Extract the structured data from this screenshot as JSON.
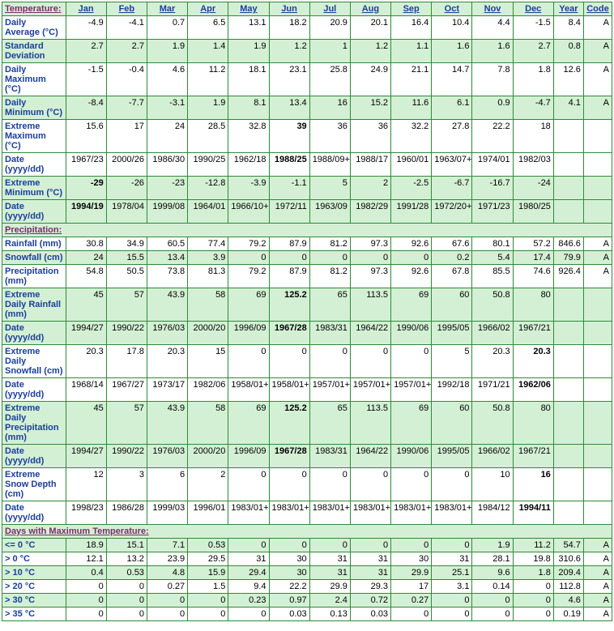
{
  "columns": [
    "Jan",
    "Feb",
    "Mar",
    "Apr",
    "May",
    "Jun",
    "Jul",
    "Aug",
    "Sep",
    "Oct",
    "Nov",
    "Dec",
    "Year",
    "Code"
  ],
  "sections": [
    {
      "title": "Temperature:",
      "titleFirstCell": true,
      "rows": [
        {
          "label": "Daily Average (°C)",
          "shaded": false,
          "cells": [
            "-4.9",
            "-4.1",
            "0.7",
            "6.5",
            "13.1",
            "18.2",
            "20.9",
            "20.1",
            "16.4",
            "10.4",
            "4.4",
            "-1.5",
            "8.4",
            "A"
          ]
        },
        {
          "label": "Standard Deviation",
          "shaded": true,
          "cells": [
            "2.7",
            "2.7",
            "1.9",
            "1.4",
            "1.9",
            "1.2",
            "1",
            "1.2",
            "1.1",
            "1.6",
            "1.6",
            "2.7",
            "0.8",
            "A"
          ]
        },
        {
          "label": "Daily Maximum (°C)",
          "shaded": false,
          "cells": [
            "-1.5",
            "-0.4",
            "4.6",
            "11.2",
            "18.1",
            "23.1",
            "25.8",
            "24.9",
            "21.1",
            "14.7",
            "7.8",
            "1.8",
            "12.6",
            "A"
          ]
        },
        {
          "label": "Daily Minimum (°C)",
          "shaded": true,
          "cells": [
            "-8.4",
            "-7.7",
            "-3.1",
            "1.9",
            "8.1",
            "13.4",
            "16",
            "15.2",
            "11.6",
            "6.1",
            "0.9",
            "-4.7",
            "4.1",
            "A"
          ]
        },
        {
          "label": "Extreme Maximum (°C)",
          "shaded": false,
          "cells": [
            "15.6",
            "17",
            "24",
            "28.5",
            "32.8",
            "39",
            "36",
            "36",
            "32.2",
            "27.8",
            "22.2",
            "18",
            "",
            ""
          ],
          "bold": [
            5
          ]
        },
        {
          "label": "Date (yyyy/dd)",
          "shaded": false,
          "cells": [
            "1967/23",
            "2000/26",
            "1986/30",
            "1990/25",
            "1962/18",
            "1988/25",
            "1988/09+",
            "1988/17",
            "1960/01",
            "1963/07+",
            "1974/01",
            "1982/03",
            "",
            ""
          ],
          "bold": [
            5
          ]
        },
        {
          "label": "Extreme Minimum (°C)",
          "shaded": true,
          "cells": [
            "-29",
            "-26",
            "-23",
            "-12.8",
            "-3.9",
            "-1.1",
            "5",
            "2",
            "-2.5",
            "-6.7",
            "-16.7",
            "-24",
            "",
            ""
          ],
          "bold": [
            0
          ]
        },
        {
          "label": "Date (yyyy/dd)",
          "shaded": true,
          "cells": [
            "1994/19",
            "1978/04",
            "1999/08",
            "1964/01",
            "1966/10+",
            "1972/11",
            "1963/09",
            "1982/29",
            "1991/28",
            "1972/20+",
            "1971/23",
            "1980/25",
            "",
            ""
          ],
          "bold": [
            0
          ]
        }
      ]
    },
    {
      "title": "Precipitation:",
      "rows": [
        {
          "label": "Rainfall (mm)",
          "shaded": false,
          "cells": [
            "30.8",
            "34.9",
            "60.5",
            "77.4",
            "79.2",
            "87.9",
            "81.2",
            "97.3",
            "92.6",
            "67.6",
            "80.1",
            "57.2",
            "846.6",
            "A"
          ]
        },
        {
          "label": "Snowfall (cm)",
          "shaded": true,
          "cells": [
            "24",
            "15.5",
            "13.4",
            "3.9",
            "0",
            "0",
            "0",
            "0",
            "0",
            "0.2",
            "5.4",
            "17.4",
            "79.9",
            "A"
          ]
        },
        {
          "label": "Precipitation (mm)",
          "shaded": false,
          "cells": [
            "54.8",
            "50.5",
            "73.8",
            "81.3",
            "79.2",
            "87.9",
            "81.2",
            "97.3",
            "92.6",
            "67.8",
            "85.5",
            "74.6",
            "926.4",
            "A"
          ]
        },
        {
          "label": "Extreme Daily Rainfall (mm)",
          "shaded": true,
          "cells": [
            "45",
            "57",
            "43.9",
            "58",
            "69",
            "125.2",
            "65",
            "113.5",
            "69",
            "60",
            "50.8",
            "80",
            "",
            ""
          ],
          "bold": [
            5
          ]
        },
        {
          "label": "Date (yyyy/dd)",
          "shaded": true,
          "cells": [
            "1994/27",
            "1990/22",
            "1976/03",
            "2000/20",
            "1996/09",
            "1967/28",
            "1983/31",
            "1964/22",
            "1990/06",
            "1995/05",
            "1966/02",
            "1967/21",
            "",
            ""
          ],
          "bold": [
            5
          ]
        },
        {
          "label": "Extreme Daily Snowfall (cm)",
          "shaded": false,
          "cells": [
            "20.3",
            "17.8",
            "20.3",
            "15",
            "0",
            "0",
            "0",
            "0",
            "0",
            "5",
            "20.3",
            "20.3",
            "",
            ""
          ],
          "bold": [
            11
          ]
        },
        {
          "label": "Date (yyyy/dd)",
          "shaded": false,
          "cells": [
            "1968/14",
            "1967/27",
            "1973/17",
            "1982/06",
            "1958/01+",
            "1958/01+",
            "1957/01+",
            "1957/01+",
            "1957/01+",
            "1992/18",
            "1971/21",
            "1962/06",
            "",
            ""
          ],
          "bold": [
            11
          ]
        },
        {
          "label": "Extreme Daily Precipitation (mm)",
          "shaded": true,
          "cells": [
            "45",
            "57",
            "43.9",
            "58",
            "69",
            "125.2",
            "65",
            "113.5",
            "69",
            "60",
            "50.8",
            "80",
            "",
            ""
          ],
          "bold": [
            5
          ]
        },
        {
          "label": "Date (yyyy/dd)",
          "shaded": true,
          "cells": [
            "1994/27",
            "1990/22",
            "1976/03",
            "2000/20",
            "1996/09",
            "1967/28",
            "1983/31",
            "1964/22",
            "1990/06",
            "1995/05",
            "1966/02",
            "1967/21",
            "",
            ""
          ],
          "bold": [
            5
          ]
        },
        {
          "label": "Extreme Snow Depth (cm)",
          "shaded": false,
          "cells": [
            "12",
            "3",
            "6",
            "2",
            "0",
            "0",
            "0",
            "0",
            "0",
            "0",
            "10",
            "16",
            "",
            ""
          ],
          "bold": [
            11
          ]
        },
        {
          "label": "Date (yyyy/dd)",
          "shaded": false,
          "cells": [
            "1998/23",
            "1986/28",
            "1999/03",
            "1996/01",
            "1983/01+",
            "1983/01+",
            "1983/01+",
            "1983/01+",
            "1983/01+",
            "1983/01+",
            "1984/12",
            "1994/11",
            "",
            ""
          ],
          "bold": [
            11
          ]
        }
      ]
    },
    {
      "title": "Days with Maximum Temperature:",
      "rows": [
        {
          "label": "<= 0 °C",
          "shaded": true,
          "cells": [
            "18.9",
            "15.1",
            "7.1",
            "0.53",
            "0",
            "0",
            "0",
            "0",
            "0",
            "0",
            "1.9",
            "11.2",
            "54.7",
            "A"
          ]
        },
        {
          "label": "> 0 °C",
          "shaded": false,
          "cells": [
            "12.1",
            "13.2",
            "23.9",
            "29.5",
            "31",
            "30",
            "31",
            "31",
            "30",
            "31",
            "28.1",
            "19.8",
            "310.6",
            "A"
          ]
        },
        {
          "label": "> 10 °C",
          "shaded": true,
          "cells": [
            "0.4",
            "0.53",
            "4.8",
            "15.9",
            "29.4",
            "30",
            "31",
            "31",
            "29.9",
            "25.1",
            "9.6",
            "1.8",
            "209.4",
            "A"
          ]
        },
        {
          "label": "> 20 °C",
          "shaded": false,
          "cells": [
            "0",
            "0",
            "0.27",
            "1.5",
            "9.4",
            "22.2",
            "29.9",
            "29.3",
            "17",
            "3.1",
            "0.14",
            "0",
            "112.8",
            "A"
          ]
        },
        {
          "label": "> 30 °C",
          "shaded": true,
          "cells": [
            "0",
            "0",
            "0",
            "0",
            "0.23",
            "0.97",
            "2.4",
            "0.72",
            "0.27",
            "0",
            "0",
            "0",
            "4.6",
            "A"
          ]
        },
        {
          "label": "> 35 °C",
          "shaded": false,
          "cells": [
            "0",
            "0",
            "0",
            "0",
            "0",
            "0.03",
            "0.13",
            "0.03",
            "0",
            "0",
            "0",
            "0",
            "0.19",
            "A"
          ]
        }
      ]
    }
  ]
}
